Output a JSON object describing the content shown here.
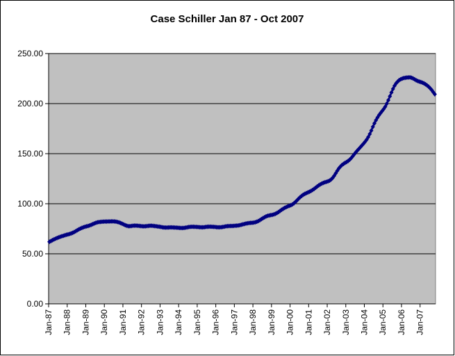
{
  "chart_data": {
    "type": "line",
    "title": "Case Schiller Jan 87 - Oct 2007",
    "categories": [
      "Jan-87",
      null,
      null,
      null,
      null,
      null,
      null,
      null,
      null,
      null,
      null,
      null,
      "Jan-88",
      null,
      null,
      null,
      null,
      null,
      null,
      null,
      null,
      null,
      null,
      null,
      "Jan-89",
      null,
      null,
      null,
      null,
      null,
      null,
      null,
      null,
      null,
      null,
      null,
      "Jan-90",
      null,
      null,
      null,
      null,
      null,
      null,
      null,
      null,
      null,
      null,
      null,
      "Jan-91",
      null,
      null,
      null,
      null,
      null,
      null,
      null,
      null,
      null,
      null,
      null,
      "Jan-92",
      null,
      null,
      null,
      null,
      null,
      null,
      null,
      null,
      null,
      null,
      null,
      "Jan-93",
      null,
      null,
      null,
      null,
      null,
      null,
      null,
      null,
      null,
      null,
      null,
      "Jan-94",
      null,
      null,
      null,
      null,
      null,
      null,
      null,
      null,
      null,
      null,
      null,
      "Jan-95",
      null,
      null,
      null,
      null,
      null,
      null,
      null,
      null,
      null,
      null,
      null,
      "Jan-96",
      null,
      null,
      null,
      null,
      null,
      null,
      null,
      null,
      null,
      null,
      null,
      "Jan-97",
      null,
      null,
      null,
      null,
      null,
      null,
      null,
      null,
      null,
      null,
      null,
      "Jan-98",
      null,
      null,
      null,
      null,
      null,
      null,
      null,
      null,
      null,
      null,
      null,
      "Jan-99",
      null,
      null,
      null,
      null,
      null,
      null,
      null,
      null,
      null,
      null,
      null,
      "Jan-00",
      null,
      null,
      null,
      null,
      null,
      null,
      null,
      null,
      null,
      null,
      null,
      "Jan-01",
      null,
      null,
      null,
      null,
      null,
      null,
      null,
      null,
      null,
      null,
      null,
      "Jan-02",
      null,
      null,
      null,
      null,
      null,
      null,
      null,
      null,
      null,
      null,
      null,
      "Jan-03",
      null,
      null,
      null,
      null,
      null,
      null,
      null,
      null,
      null,
      null,
      null,
      "Jan-04",
      null,
      null,
      null,
      null,
      null,
      null,
      null,
      null,
      null,
      null,
      null,
      "Jan-05",
      null,
      null,
      null,
      null,
      null,
      null,
      null,
      null,
      null,
      null,
      null,
      "Jan-06",
      null,
      null,
      null,
      null,
      null,
      null,
      null,
      null,
      null,
      null,
      null,
      "Jan-07",
      null,
      null,
      null,
      null,
      null,
      null,
      null,
      null,
      null
    ],
    "values": [
      62.0,
      62.8,
      63.6,
      64.4,
      65.1,
      65.8,
      66.4,
      67.0,
      67.5,
      68.0,
      68.5,
      69.0,
      69.4,
      69.8,
      70.3,
      70.9,
      71.7,
      72.6,
      73.5,
      74.4,
      75.2,
      75.9,
      76.5,
      77.0,
      77.4,
      77.8,
      78.3,
      78.9,
      79.6,
      80.3,
      80.9,
      81.4,
      81.7,
      81.9,
      82.0,
      82.1,
      82.2,
      82.2,
      82.3,
      82.3,
      82.4,
      82.4,
      82.3,
      82.1,
      81.8,
      81.3,
      80.7,
      80.0,
      79.3,
      78.6,
      78.0,
      77.6,
      77.6,
      77.8,
      78.0,
      78.1,
      78.1,
      78.0,
      77.9,
      77.7,
      77.5,
      77.4,
      77.5,
      77.7,
      77.9,
      78.0,
      78.0,
      77.9,
      77.7,
      77.5,
      77.3,
      77.1,
      76.8,
      76.5,
      76.3,
      76.2,
      76.2,
      76.3,
      76.4,
      76.4,
      76.3,
      76.2,
      76.1,
      76.0,
      75.9,
      75.8,
      75.8,
      75.9,
      76.1,
      76.4,
      76.7,
      76.9,
      77.0,
      77.0,
      76.9,
      76.8,
      76.7,
      76.6,
      76.5,
      76.5,
      76.6,
      76.8,
      77.0,
      77.1,
      77.1,
      77.0,
      76.9,
      76.8,
      76.6,
      76.5,
      76.5,
      76.6,
      76.8,
      77.1,
      77.4,
      77.6,
      77.7,
      77.8,
      77.8,
      77.9,
      78.0,
      78.1,
      78.3,
      78.6,
      79.0,
      79.4,
      79.8,
      80.2,
      80.5,
      80.7,
      80.9,
      81.0,
      81.2,
      81.5,
      82.0,
      82.7,
      83.6,
      84.6,
      85.6,
      86.5,
      87.3,
      87.9,
      88.3,
      88.6,
      88.9,
      89.3,
      89.9,
      90.7,
      91.7,
      92.8,
      93.9,
      94.9,
      95.8,
      96.6,
      97.3,
      97.9,
      98.5,
      99.3,
      100.4,
      101.8,
      103.4,
      105.0,
      106.5,
      107.8,
      108.9,
      109.8,
      110.6,
      111.3,
      112.0,
      112.8,
      113.7,
      114.8,
      116.0,
      117.2,
      118.3,
      119.3,
      120.1,
      120.8,
      121.4,
      121.9,
      122.4,
      123.1,
      124.2,
      125.8,
      127.9,
      130.4,
      132.9,
      135.2,
      137.1,
      138.6,
      139.8,
      140.8,
      141.7,
      142.7,
      144.0,
      145.6,
      147.5,
      149.5,
      151.4,
      153.2,
      154.9,
      156.6,
      158.3,
      160.1,
      162.0,
      164.1,
      166.6,
      169.6,
      173.1,
      176.8,
      180.3,
      183.4,
      186.1,
      188.5,
      190.6,
      192.6,
      194.6,
      197.0,
      200.0,
      203.5,
      207.3,
      211.1,
      214.7,
      217.8,
      220.2,
      222.0,
      223.4,
      224.3,
      225.0,
      225.5,
      225.8,
      226.0,
      226.1,
      226.2,
      225.8,
      225.1,
      224.2,
      223.3,
      222.6,
      222.0,
      221.5,
      220.9,
      220.2,
      219.3,
      218.2,
      216.9,
      215.4,
      213.6,
      211.5,
      209.4
    ],
    "color": "#000080",
    "ylim": [
      0,
      250
    ],
    "yticks": [
      {
        "value": 0,
        "label": "0.00"
      },
      {
        "value": 50,
        "label": "50.00"
      },
      {
        "value": 100,
        "label": "100.00"
      },
      {
        "value": 150,
        "label": "150.00"
      },
      {
        "value": 200,
        "label": "200.00"
      },
      {
        "value": 250,
        "label": "250.00"
      }
    ],
    "grid": true
  }
}
